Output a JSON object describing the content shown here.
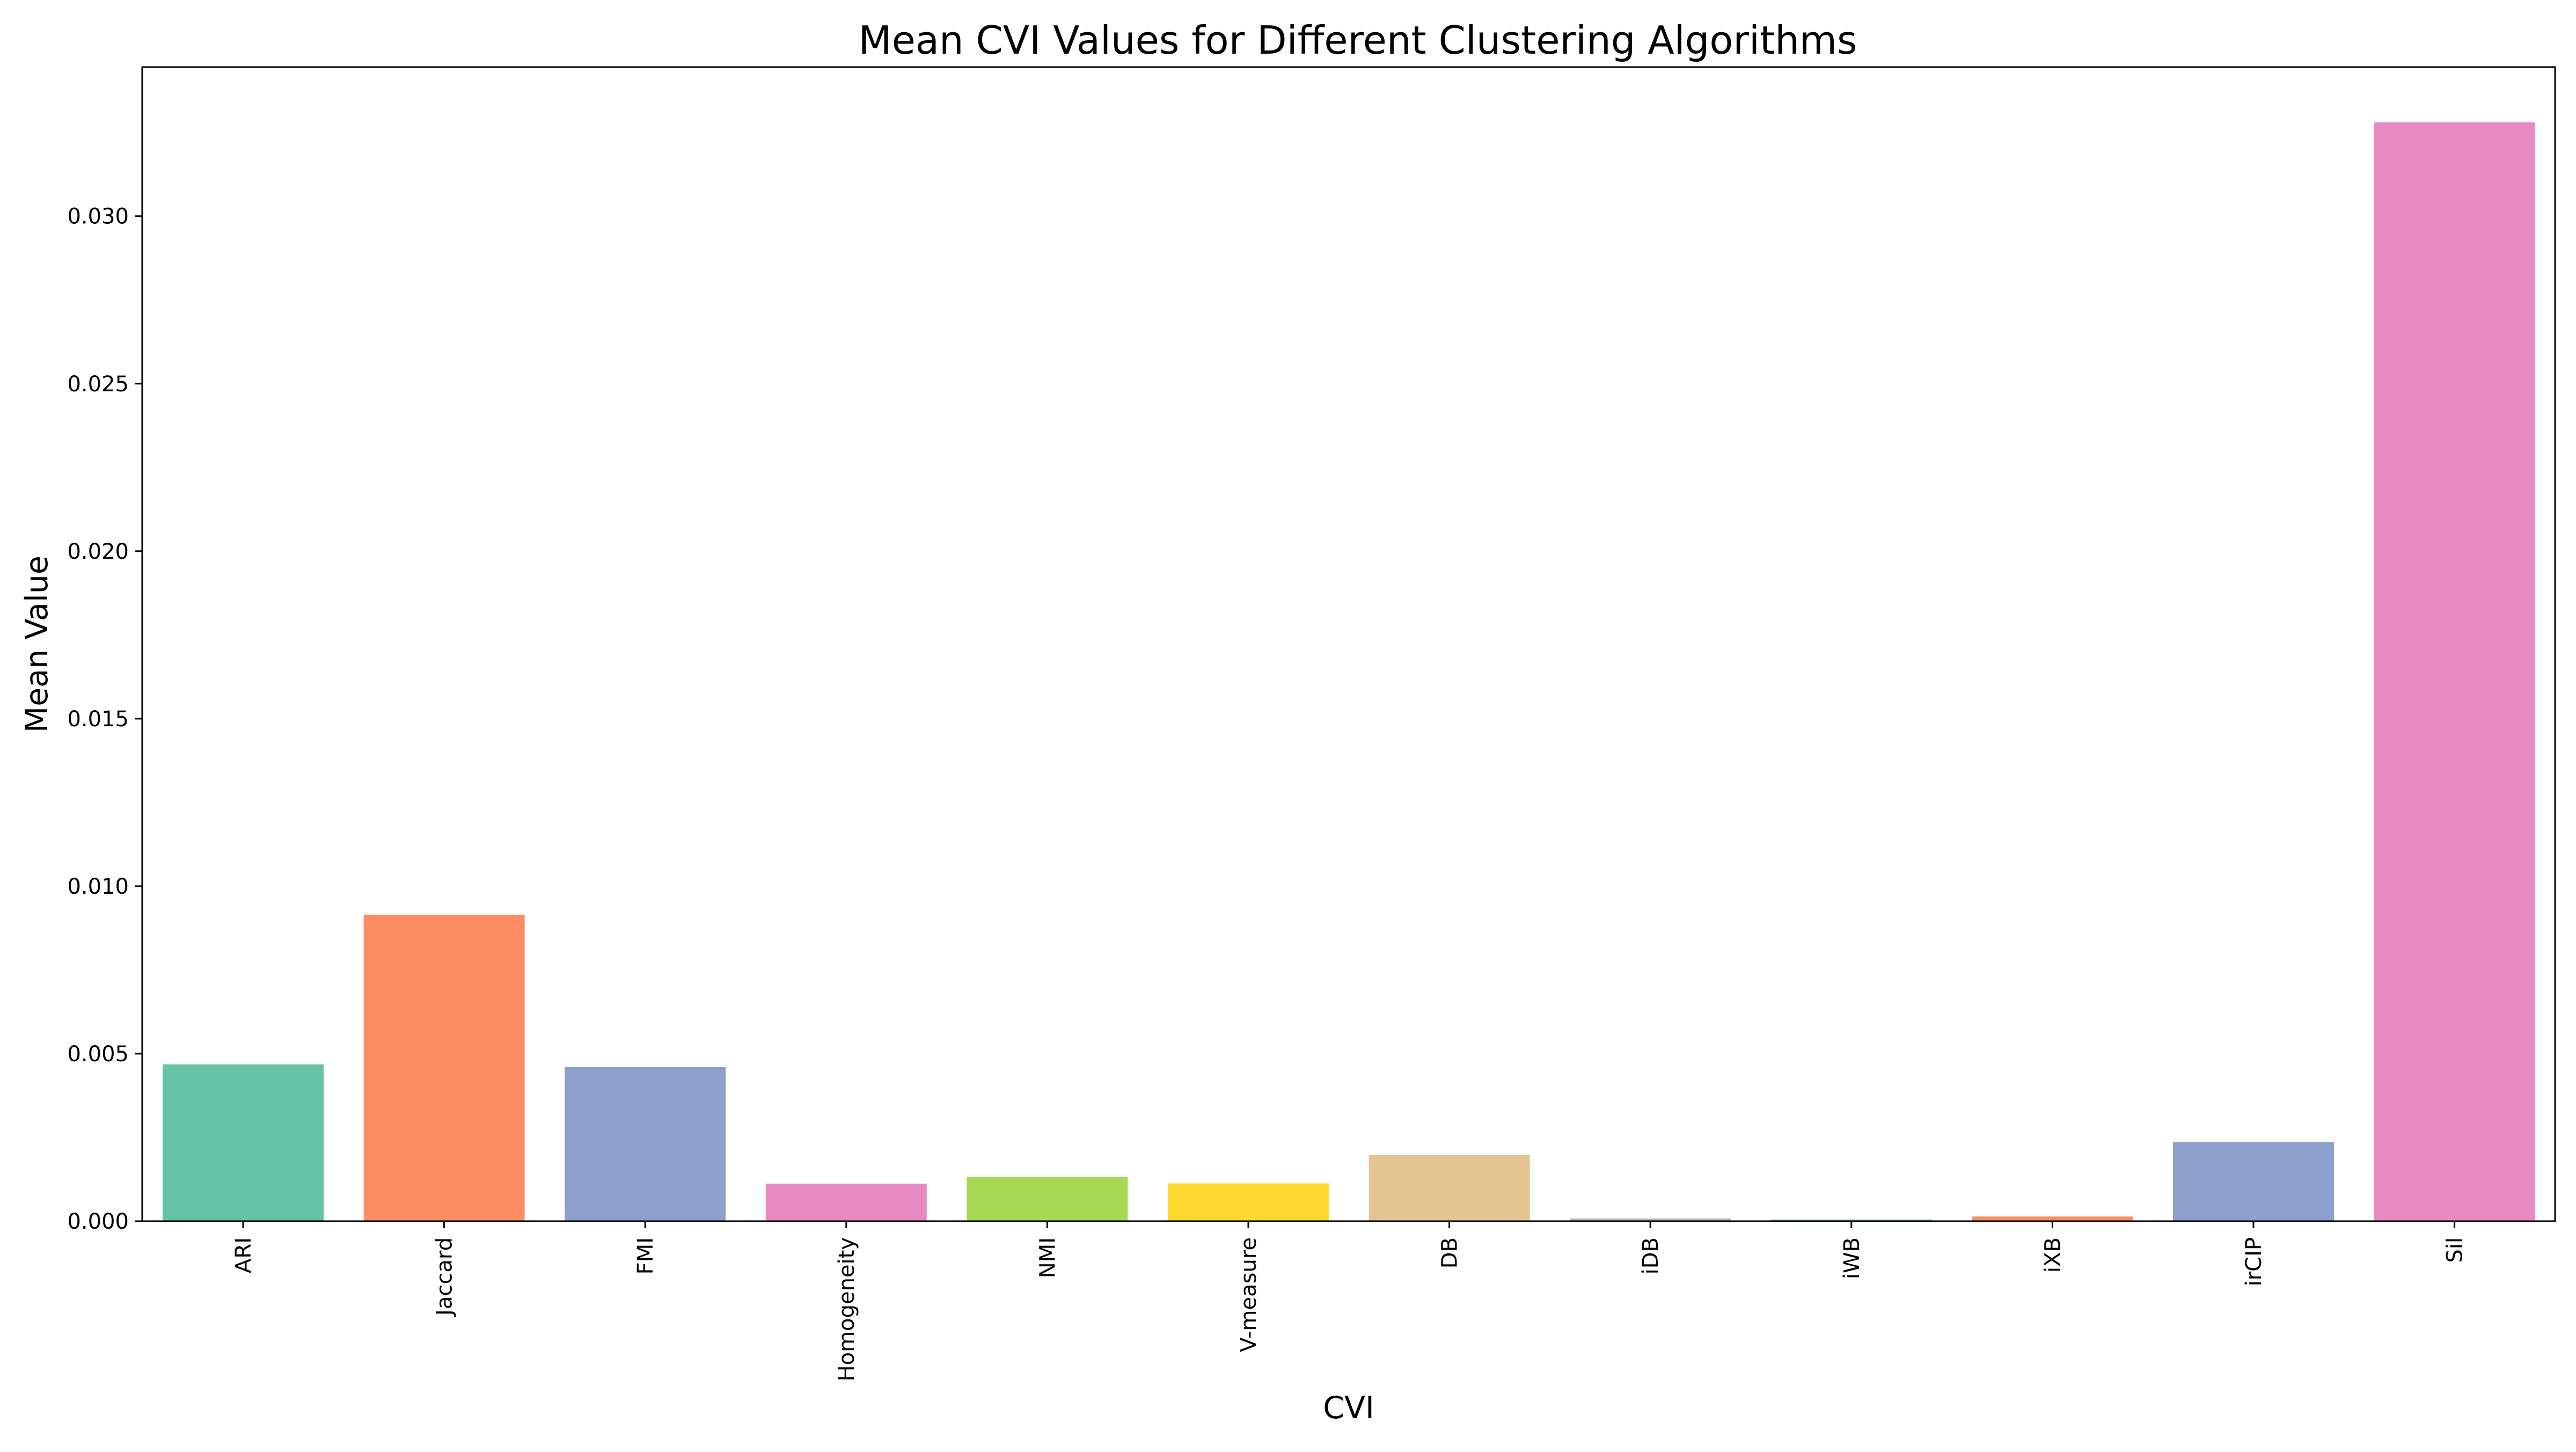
{
  "chart_data": {
    "type": "bar",
    "title": "Mean CVI Values for Different Clustering Algorithms",
    "xlabel": "CVI",
    "ylabel": "Mean Value",
    "categories": [
      "ARI",
      "Jaccard",
      "FMI",
      "Homogeneity",
      "NMI",
      "V-measure",
      "DB",
      "iDB",
      "iWB",
      "iXB",
      "irCIP",
      "Sil"
    ],
    "values": [
      0.00468,
      0.00915,
      0.0046,
      0.00112,
      0.00133,
      0.00113,
      0.00198,
      8e-05,
      5e-05,
      0.00014,
      0.00236,
      0.0328
    ],
    "colors": [
      "#66c2a5",
      "#fc8d62",
      "#8da0cb",
      "#e78ac3",
      "#a6d854",
      "#ffd92f",
      "#e5c494",
      "#b3b3b3",
      "#66c2a5",
      "#fc8d62",
      "#8da0cb",
      "#e78ac3"
    ],
    "ylim": [
      0,
      0.03445
    ],
    "yticks": [
      0.0,
      0.005,
      0.01,
      0.015,
      0.02,
      0.025,
      0.03
    ],
    "ytick_labels": [
      "0.000",
      "0.005",
      "0.010",
      "0.015",
      "0.020",
      "0.025",
      "0.030"
    ],
    "grid": false,
    "legend": false
  }
}
